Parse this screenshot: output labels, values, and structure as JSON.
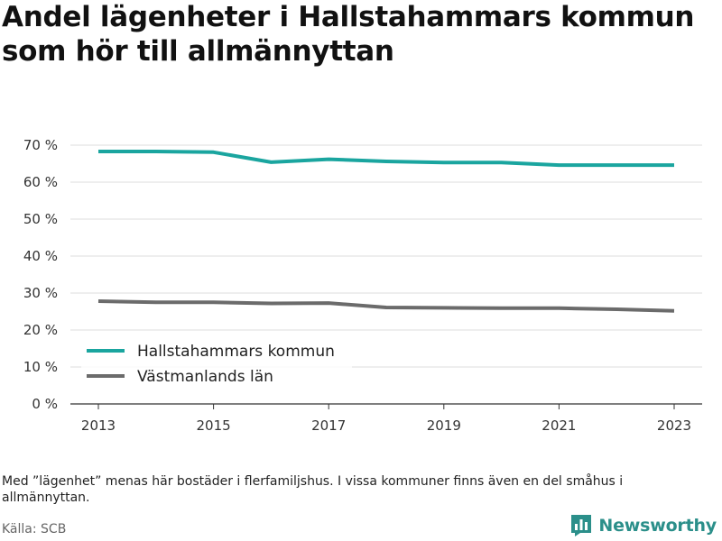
{
  "title": "Andel lägenheter i Hallstahammars kommun som hör till allmännyttan",
  "footnote": "Med ”lägenhet” menas här bostäder i flerfamiljshus. I vissa kommuner finns även en del småhus i allmännyttan.",
  "source": "Källa: SCB",
  "brand": {
    "name": "Newsworthy",
    "icon": "bar-chart-logo-icon",
    "color": "#2b8f8a"
  },
  "chart_data": {
    "type": "line",
    "x": [
      2013,
      2014,
      2015,
      2016,
      2017,
      2018,
      2019,
      2020,
      2021,
      2022,
      2023
    ],
    "xticks": [
      "2013",
      "2015",
      "2017",
      "2019",
      "2021",
      "2023"
    ],
    "ylim": [
      0,
      70
    ],
    "yticks": [
      "0 %",
      "10 %",
      "20 %",
      "30 %",
      "40 %",
      "50 %",
      "60 %",
      "70 %"
    ],
    "grid": true,
    "legend_position": "lower-left",
    "series": [
      {
        "name": "Hallstahammars kommun",
        "color": "#1aa59f",
        "values": [
          68.3,
          68.3,
          68.1,
          65.4,
          66.2,
          65.6,
          65.3,
          65.3,
          64.6,
          64.6,
          64.6
        ]
      },
      {
        "name": "Västmanlands län",
        "color": "#6b6b6b",
        "values": [
          27.8,
          27.5,
          27.5,
          27.2,
          27.3,
          26.1,
          26.0,
          25.9,
          25.9,
          25.6,
          25.2
        ]
      }
    ]
  }
}
